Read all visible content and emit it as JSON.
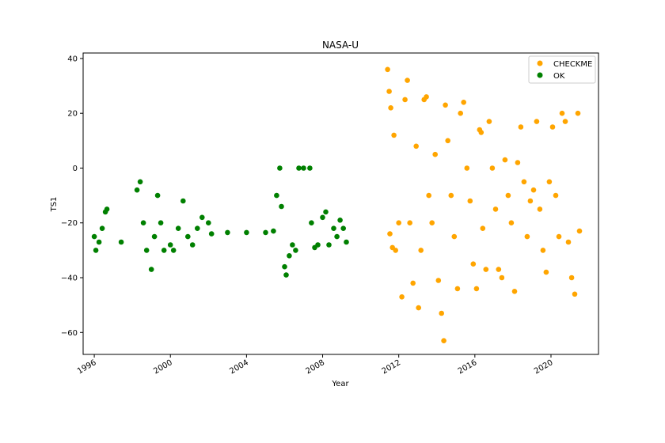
{
  "chart_data": {
    "type": "scatter",
    "title": "NASA-U",
    "xlabel": "Year",
    "ylabel": "TS1",
    "xlim": [
      "1995-06-01",
      "2022-07-01"
    ],
    "ylim": [
      -68,
      42
    ],
    "x_ticks": [
      "1996",
      "2000",
      "2004",
      "2008",
      "2012",
      "2016",
      "2020"
    ],
    "y_ticks": [
      40,
      20,
      0,
      -20,
      -40,
      -60
    ],
    "grid": false,
    "legend_position": "top-right",
    "series": [
      {
        "name": "CHECKME",
        "color": "#ffa500",
        "points": [
          [
            "2011-06-01",
            36
          ],
          [
            "2011-07-01",
            28
          ],
          [
            "2011-07-15",
            -24
          ],
          [
            "2011-08-01",
            22
          ],
          [
            "2011-09-01",
            -29
          ],
          [
            "2011-10-01",
            12
          ],
          [
            "2011-11-01",
            -30
          ],
          [
            "2012-01-01",
            -20
          ],
          [
            "2012-03-01",
            -47
          ],
          [
            "2012-05-01",
            25
          ],
          [
            "2012-06-15",
            32
          ],
          [
            "2012-08-01",
            -20
          ],
          [
            "2012-10-01",
            -42
          ],
          [
            "2012-12-01",
            8
          ],
          [
            "2013-01-15",
            -51
          ],
          [
            "2013-03-01",
            -30
          ],
          [
            "2013-05-01",
            25
          ],
          [
            "2013-06-15",
            26
          ],
          [
            "2013-08-01",
            -10
          ],
          [
            "2013-10-01",
            -20
          ],
          [
            "2013-12-01",
            5
          ],
          [
            "2014-02-01",
            -41
          ],
          [
            "2014-04-01",
            -53
          ],
          [
            "2014-05-15",
            -63
          ],
          [
            "2014-06-15",
            23
          ],
          [
            "2014-08-01",
            10
          ],
          [
            "2014-10-01",
            -10
          ],
          [
            "2014-12-01",
            -25
          ],
          [
            "2015-02-01",
            -44
          ],
          [
            "2015-04-01",
            20
          ],
          [
            "2015-06-01",
            24
          ],
          [
            "2015-08-01",
            0
          ],
          [
            "2015-10-01",
            -12
          ],
          [
            "2015-12-01",
            -35
          ],
          [
            "2016-02-01",
            -44
          ],
          [
            "2016-04-01",
            14
          ],
          [
            "2016-05-01",
            13
          ],
          [
            "2016-06-01",
            -22
          ],
          [
            "2016-08-01",
            -37
          ],
          [
            "2016-10-01",
            17
          ],
          [
            "2016-12-01",
            0
          ],
          [
            "2017-02-01",
            -15
          ],
          [
            "2017-04-01",
            -37
          ],
          [
            "2017-06-01",
            -40
          ],
          [
            "2017-08-01",
            3
          ],
          [
            "2017-10-01",
            -10
          ],
          [
            "2017-12-01",
            -20
          ],
          [
            "2018-02-01",
            -45
          ],
          [
            "2018-04-01",
            2
          ],
          [
            "2018-06-01",
            15
          ],
          [
            "2018-08-01",
            -5
          ],
          [
            "2018-10-01",
            -25
          ],
          [
            "2018-12-01",
            -12
          ],
          [
            "2019-02-01",
            -8
          ],
          [
            "2019-04-01",
            17
          ],
          [
            "2019-06-01",
            -15
          ],
          [
            "2019-08-01",
            -30
          ],
          [
            "2019-10-01",
            -38
          ],
          [
            "2019-12-01",
            -5
          ],
          [
            "2020-02-01",
            15
          ],
          [
            "2020-04-01",
            -10
          ],
          [
            "2020-06-01",
            -25
          ],
          [
            "2020-08-01",
            20
          ],
          [
            "2020-10-01",
            17
          ],
          [
            "2020-12-01",
            -27
          ],
          [
            "2021-02-01",
            -40
          ],
          [
            "2021-04-01",
            -46
          ],
          [
            "2021-06-01",
            20
          ],
          [
            "2021-07-01",
            -23
          ]
        ]
      },
      {
        "name": "OK",
        "color": "#008000",
        "points": [
          [
            "1996-01-01",
            -25
          ],
          [
            "1996-02-01",
            -30
          ],
          [
            "1996-04-01",
            -27
          ],
          [
            "1996-06-01",
            -22
          ],
          [
            "1996-08-01",
            -16
          ],
          [
            "1996-09-01",
            -15
          ],
          [
            "1997-06-01",
            -27
          ],
          [
            "1998-04-01",
            -8
          ],
          [
            "1998-06-01",
            -5
          ],
          [
            "1998-08-01",
            -20
          ],
          [
            "1998-10-01",
            -30
          ],
          [
            "1999-01-01",
            -37
          ],
          [
            "1999-03-01",
            -25
          ],
          [
            "1999-05-01",
            -10
          ],
          [
            "1999-07-01",
            -20
          ],
          [
            "1999-09-01",
            -30
          ],
          [
            "2000-01-01",
            -28
          ],
          [
            "2000-03-01",
            -30
          ],
          [
            "2000-06-01",
            -22
          ],
          [
            "2000-09-01",
            -12
          ],
          [
            "2000-12-01",
            -25
          ],
          [
            "2001-03-01",
            -28
          ],
          [
            "2001-06-01",
            -22
          ],
          [
            "2001-09-01",
            -18
          ],
          [
            "2002-01-01",
            -20
          ],
          [
            "2002-03-01",
            -24
          ],
          [
            "2003-01-01",
            -23.5
          ],
          [
            "2004-01-01",
            -23.5
          ],
          [
            "2005-01-01",
            -23.5
          ],
          [
            "2005-06-01",
            -23
          ],
          [
            "2005-08-01",
            -10
          ],
          [
            "2005-10-01",
            0
          ],
          [
            "2005-11-01",
            -14
          ],
          [
            "2006-01-01",
            -36
          ],
          [
            "2006-02-01",
            -39
          ],
          [
            "2006-04-01",
            -32
          ],
          [
            "2006-06-01",
            -28
          ],
          [
            "2006-08-01",
            -30
          ],
          [
            "2006-10-01",
            0
          ],
          [
            "2007-01-01",
            0
          ],
          [
            "2007-05-01",
            0
          ],
          [
            "2007-06-01",
            -20
          ],
          [
            "2007-08-01",
            -29
          ],
          [
            "2007-10-01",
            -28
          ],
          [
            "2008-01-01",
            -18
          ],
          [
            "2008-03-01",
            -16
          ],
          [
            "2008-05-01",
            -28
          ],
          [
            "2008-08-01",
            -22
          ],
          [
            "2008-10-01",
            -25
          ],
          [
            "2008-12-01",
            -19
          ],
          [
            "2009-02-01",
            -22
          ],
          [
            "2009-04-01",
            -27
          ]
        ]
      }
    ]
  }
}
